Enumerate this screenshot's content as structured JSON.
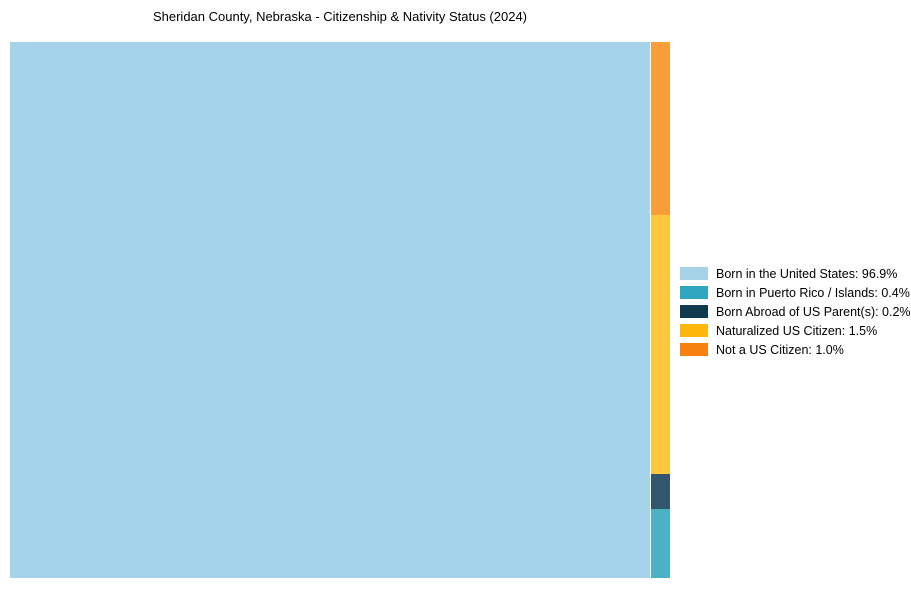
{
  "page": {
    "background": "#ffffff"
  },
  "chart_data": {
    "type": "treemap",
    "title": "Sheridan County, Nebraska - Citizenship & Nativity Status (2024)",
    "unit": "%",
    "legend_position": "right",
    "series": [
      {
        "label": "Born in the United States",
        "value": 96.9,
        "color": "#a4d3ea",
        "legend_color": "#a6d2e8",
        "legend_label": "Born in the United States: 96.9%"
      },
      {
        "label": "Born in Puerto Rico / Islands",
        "value": 0.4,
        "color": "#4bb2c6",
        "legend_color": "#2fa7c0",
        "legend_label": "Born in Puerto Rico / Islands: 0.4%"
      },
      {
        "label": "Born Abroad of US Parent(s)",
        "value": 0.2,
        "color": "#32566c",
        "legend_color": "#11394f",
        "legend_label": "Born Abroad of US Parent(s): 0.2%"
      },
      {
        "label": "Naturalized US Citizen",
        "value": 1.5,
        "color": "#fec83e",
        "legend_color": "#feb70d",
        "legend_label": "Naturalized US Citizen: 1.5%"
      },
      {
        "label": "Not a US Citizen",
        "value": 1.0,
        "color": "#f99d38",
        "legend_color": "#f8820f",
        "legend_label": "Not a US Citizen: 1.0%"
      }
    ],
    "minor_column_order_top_to_bottom": [
      "Not a US Citizen",
      "Naturalized US Citizen",
      "Born Abroad of US Parent(s)",
      "Born in Puerto Rico / Islands"
    ]
  }
}
